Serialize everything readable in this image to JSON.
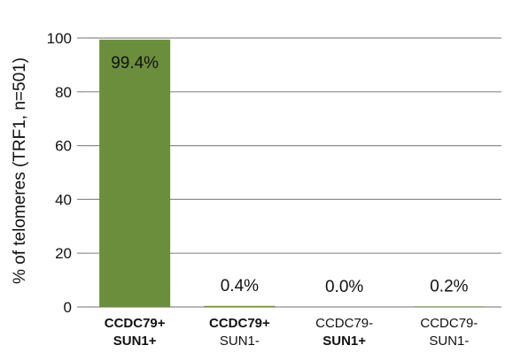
{
  "chart_data": {
    "type": "bar",
    "categories": [
      {
        "line1": "CCDC79+",
        "line1_bold": true,
        "line2": "SUN1+",
        "line2_bold": true
      },
      {
        "line1": "CCDC79+",
        "line1_bold": true,
        "line2": "SUN1-",
        "line2_bold": false
      },
      {
        "line1": "CCDC79-",
        "line1_bold": false,
        "line2": "SUN1+",
        "line2_bold": true
      },
      {
        "line1": "CCDC79-",
        "line1_bold": false,
        "line2": "SUN1-",
        "line2_bold": false
      }
    ],
    "values": [
      99.4,
      0.4,
      0.0,
      0.2
    ],
    "data_labels": [
      "99.4%",
      "0.4%",
      "0.0%",
      "0.2%"
    ],
    "ylabel": "% of telomeres (TRF1, n=501)",
    "ylim": [
      0,
      100
    ],
    "yticks": [
      0,
      20,
      40,
      60,
      80,
      100
    ],
    "grid": true,
    "bar_color": "#6b8e3d",
    "grid_color": "#8c8c8c"
  }
}
